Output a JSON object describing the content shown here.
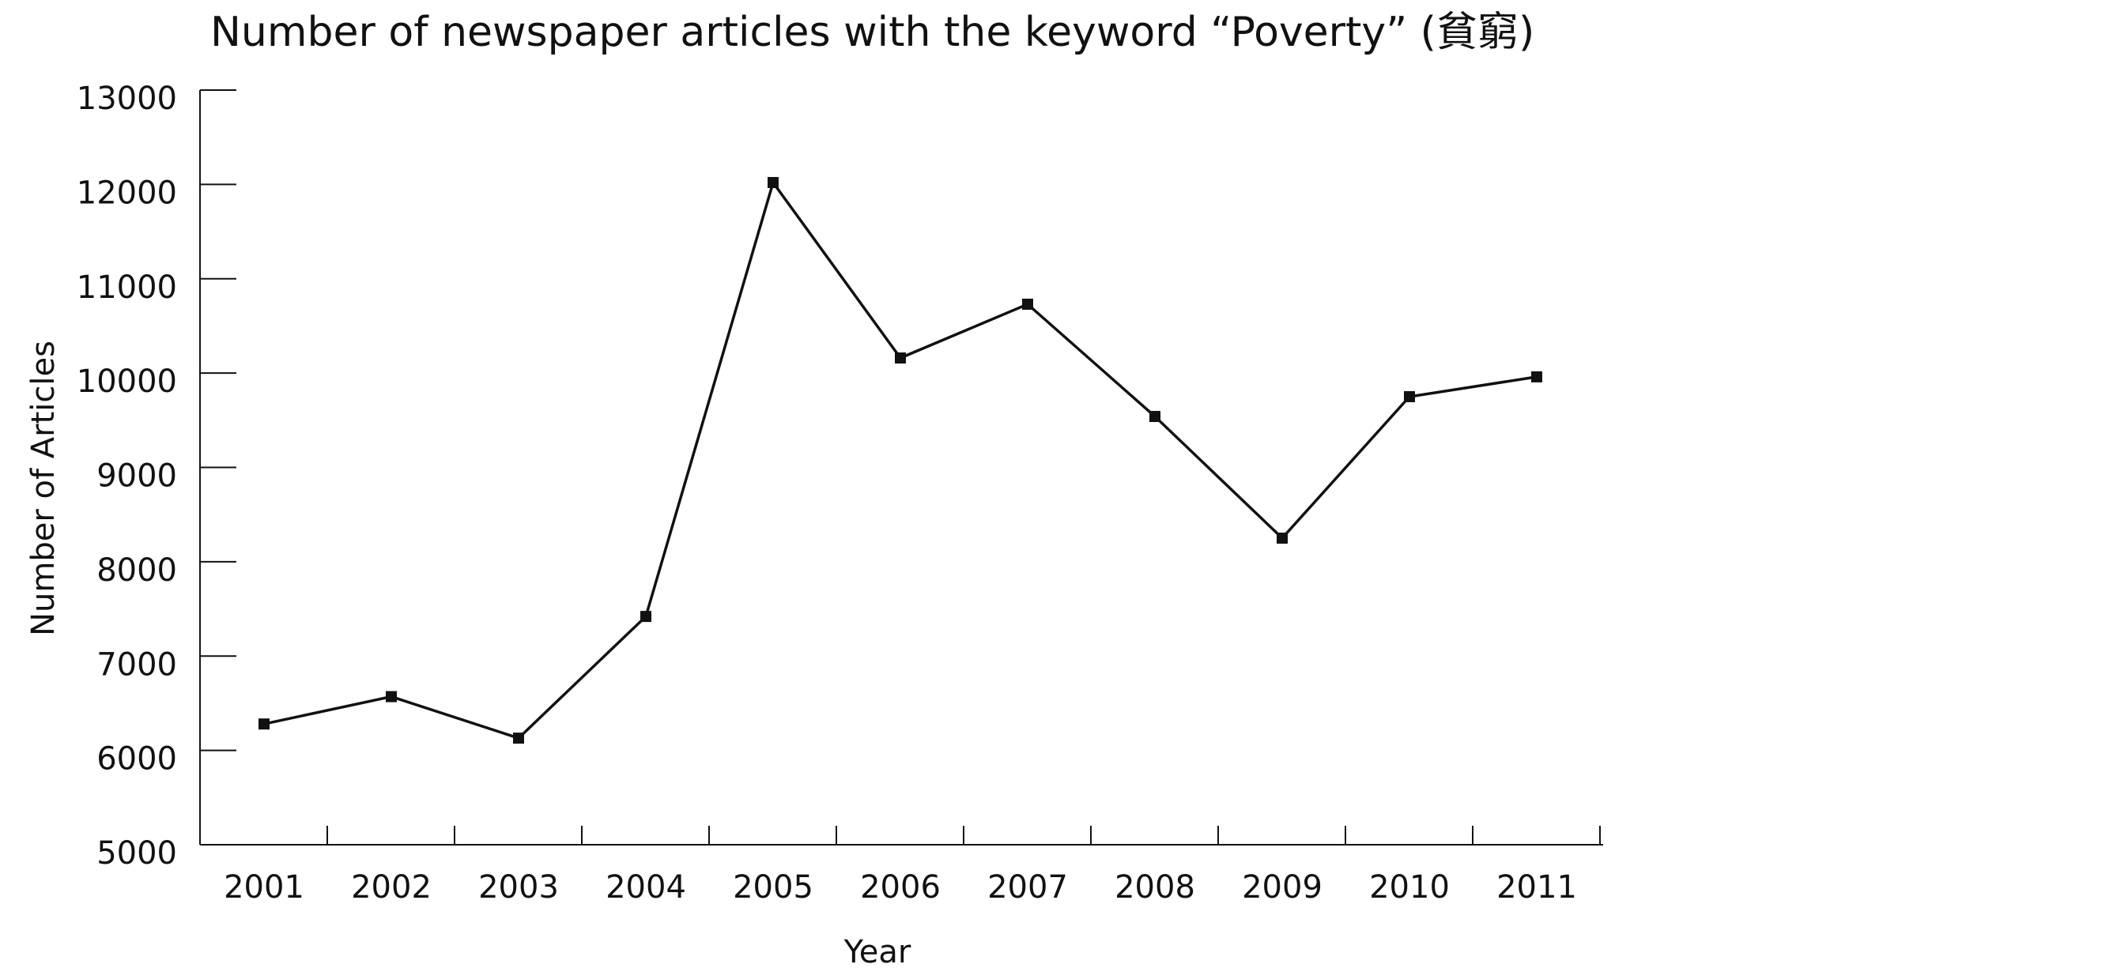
{
  "chart_data": {
    "type": "line",
    "title": "Number of newspaper articles with the keyword “Poverty” (貧窮)",
    "xlabel": "Year",
    "ylabel": "Number of Articles",
    "x": [
      "2001",
      "2002",
      "2003",
      "2004",
      "2005",
      "2006",
      "2007",
      "2008",
      "2009",
      "2010",
      "2011"
    ],
    "series": [
      {
        "values": [
          6280,
          6570,
          6130,
          7420,
          12020,
          10160,
          10730,
          9540,
          8250,
          9750,
          9960
        ]
      }
    ],
    "ylim": [
      5000,
      13000
    ],
    "yticks": [
      "5000",
      "6000",
      "7000",
      "8000",
      "9000",
      "10000",
      "11000",
      "12000",
      "13000"
    ],
    "grid": false,
    "marker": "square",
    "colors": {
      "line": "#111111",
      "axis": "#111111",
      "text": "#111111"
    }
  }
}
